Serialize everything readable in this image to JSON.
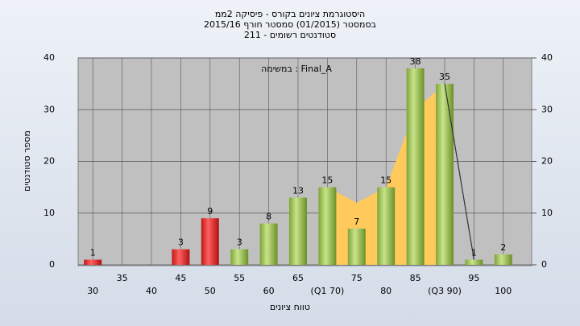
{
  "chart_data": {
    "type": "bar",
    "title": "היסטוגרמת ציונים בקורס - פיסיקה 2ממ",
    "subtitle": "בסמסטר  (01/2015)  סמסטר חורף 2015/16",
    "subtitle2": "סטודנטים רשומים - 211",
    "annotation": "במשימה : Final_A",
    "x_label": "טווח ציונים",
    "y_label": "מספר סטודנטים",
    "categories": [
      "30",
      "35",
      "40",
      "45",
      "50",
      "55",
      "60",
      "65",
      "(Q1 70)",
      "75",
      "80",
      "85",
      "(Q3 90)",
      "95",
      "100"
    ],
    "values": [
      1,
      null,
      null,
      3,
      9,
      3,
      8,
      13,
      15,
      7,
      15,
      38,
      35,
      1,
      2
    ],
    "colors": [
      "red",
      null,
      null,
      "red",
      "red",
      "green",
      "green",
      "green",
      "green",
      "green",
      "green",
      "green",
      "green",
      "green",
      "green"
    ],
    "area": {
      "color": "#ffc95c",
      "values": [
        null,
        null,
        null,
        null,
        null,
        null,
        null,
        null,
        15,
        12,
        15,
        30,
        35,
        null,
        null
      ]
    },
    "line": {
      "color": "#333333",
      "values": [
        null,
        null,
        null,
        null,
        null,
        null,
        null,
        null,
        null,
        null,
        null,
        null,
        35,
        1,
        null
      ]
    },
    "ylim": [
      0,
      40
    ],
    "yticks": [
      0,
      10,
      20,
      30,
      40
    ],
    "y2lim": [
      0,
      40
    ],
    "y2ticks": [
      0,
      10,
      20,
      30,
      40
    ],
    "grid": true
  }
}
